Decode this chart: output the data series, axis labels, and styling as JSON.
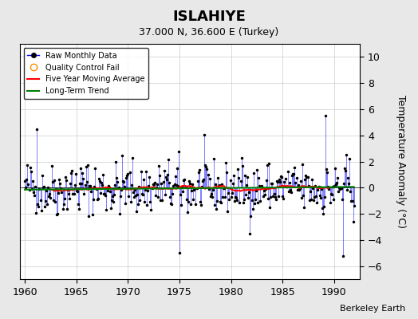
{
  "title": "ISLAHIYE",
  "subtitle": "37.000 N, 36.600 E (Turkey)",
  "ylabel": "Temperature Anomaly (°C)",
  "attribution": "Berkeley Earth",
  "xlim": [
    1959.5,
    1992.5
  ],
  "ylim": [
    -7,
    11
  ],
  "yticks": [
    -6,
    -4,
    -2,
    0,
    2,
    4,
    6,
    8,
    10
  ],
  "xticks": [
    1960,
    1965,
    1970,
    1975,
    1980,
    1985,
    1990
  ],
  "bg_color": "#e8e8e8",
  "plot_bg_color": "#ffffff",
  "seed": 42,
  "years_start": 1960,
  "years_end": 1991
}
